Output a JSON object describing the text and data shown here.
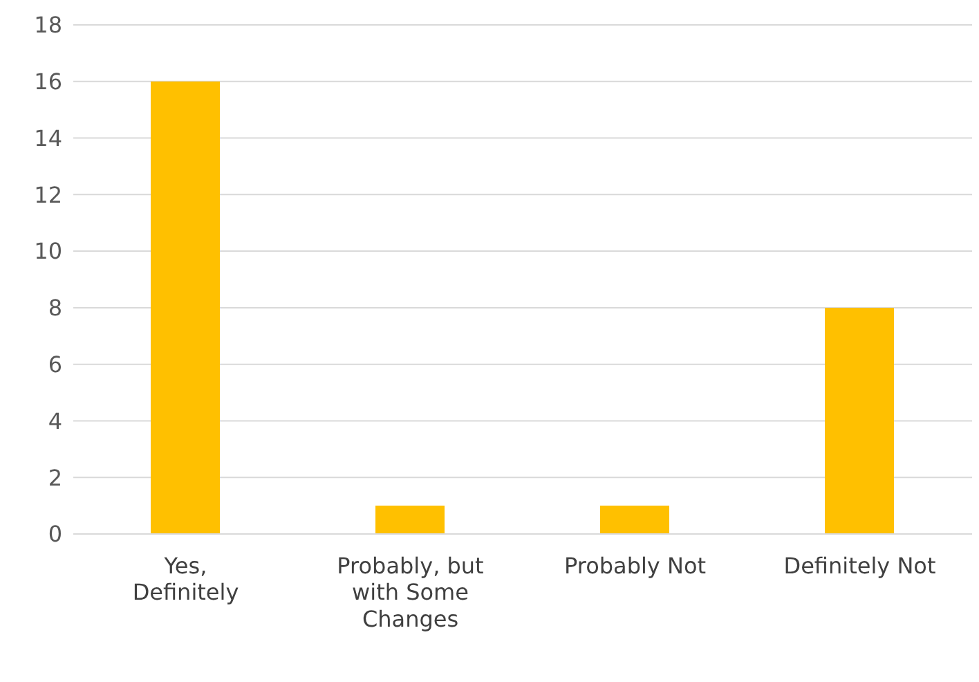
{
  "chart_data": {
    "type": "bar",
    "categories": [
      "Yes, Definitely",
      "Probably, but with Some Changes",
      "Probably Not",
      "Definitely Not"
    ],
    "values": [
      16,
      1,
      1,
      8
    ],
    "color": "#ffc000",
    "ylim": [
      0,
      18
    ],
    "yticks": [
      0,
      2,
      4,
      6,
      8,
      10,
      12,
      14,
      16,
      18
    ],
    "grid": "y",
    "legend": false
  }
}
